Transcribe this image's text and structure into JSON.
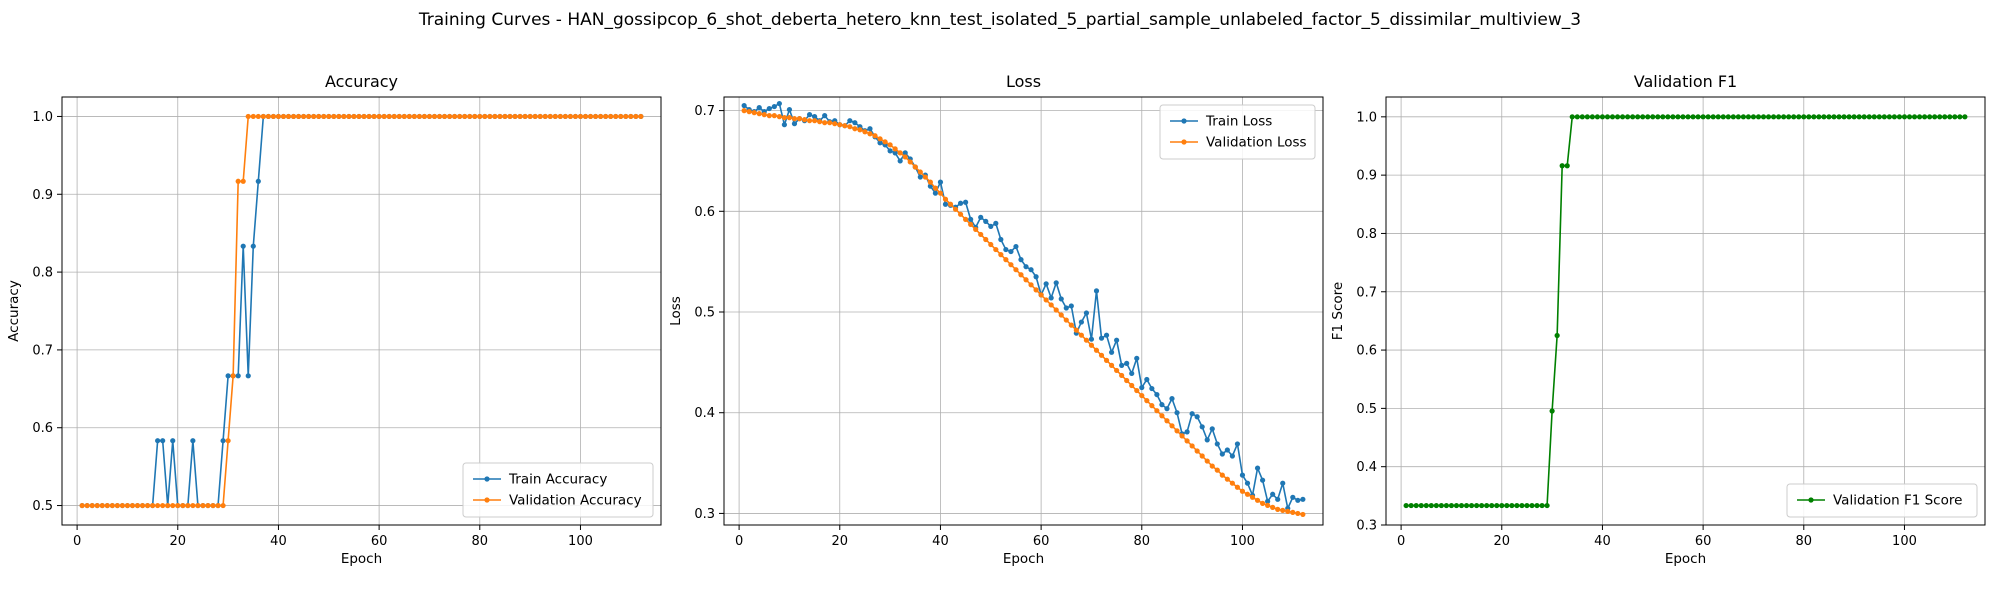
{
  "figure": {
    "suptitle": "Training Curves - HAN_gossipcop_6_shot_deberta_hetero_knn_test_isolated_5_partial_sample_unlabeled_factor_5_dissimilar_multiview_3"
  },
  "colors": {
    "blue": "#1f77b4",
    "orange": "#ff7f0e",
    "green": "#008000",
    "grid": "#b0b0b0"
  },
  "chart_data": [
    {
      "type": "line",
      "title": "Accuracy",
      "xlabel": "Epoch",
      "ylabel": "Accuracy",
      "xlim": [
        -3,
        116
      ],
      "ylim": [
        0.475,
        1.025
      ],
      "xticks": [
        0,
        20,
        40,
        60,
        80,
        100
      ],
      "yticks": [
        0.5,
        0.6,
        0.7,
        0.8,
        0.9,
        1.0
      ],
      "ytick_labels": [
        "0.5",
        "0.6",
        "0.7",
        "0.8",
        "0.9",
        "1.0"
      ],
      "grid": true,
      "legend": "lower-right",
      "series": [
        {
          "name": "Train Accuracy",
          "color": "#1f77b4",
          "runs": [
            [
              1,
              15,
              0.5
            ],
            [
              16,
              16,
              0.5833
            ],
            [
              17,
              17,
              0.5833
            ],
            [
              18,
              18,
              0.5
            ],
            [
              19,
              19,
              0.5833
            ],
            [
              20,
              22,
              0.5
            ],
            [
              23,
              23,
              0.5833
            ],
            [
              24,
              28,
              0.5
            ],
            [
              29,
              29,
              0.5833
            ],
            [
              30,
              30,
              0.6667
            ],
            [
              31,
              31,
              0.6667
            ],
            [
              32,
              32,
              0.6667
            ],
            [
              33,
              33,
              0.8333
            ],
            [
              34,
              34,
              0.6667
            ],
            [
              35,
              35,
              0.8333
            ],
            [
              36,
              36,
              0.9167
            ],
            [
              37,
              112,
              1.0
            ]
          ]
        },
        {
          "name": "Validation Accuracy",
          "color": "#ff7f0e",
          "runs": [
            [
              1,
              29,
              0.5
            ],
            [
              30,
              30,
              0.5833
            ],
            [
              31,
              31,
              0.6667
            ],
            [
              32,
              33,
              0.9167
            ],
            [
              34,
              112,
              1.0
            ]
          ]
        }
      ]
    },
    {
      "type": "line",
      "title": "Loss",
      "xlabel": "Epoch",
      "ylabel": "Loss",
      "xlim": [
        -3,
        116
      ],
      "ylim": [
        0.2885,
        0.7135
      ],
      "xticks": [
        0,
        20,
        40,
        60,
        80,
        100
      ],
      "yticks": [
        0.3,
        0.4,
        0.5,
        0.6,
        0.7
      ],
      "ytick_labels": [
        "0.3",
        "0.4",
        "0.5",
        "0.6",
        "0.7"
      ],
      "grid": true,
      "legend": "upper-right",
      "series": [
        {
          "name": "Train Loss",
          "color": "#1f77b4",
          "x": [
            1,
            2,
            3,
            4,
            5,
            6,
            7,
            8,
            9,
            10,
            11,
            12,
            13,
            14,
            15,
            16,
            17,
            18,
            19,
            20,
            21,
            22,
            23,
            24,
            25,
            26,
            27,
            28,
            29,
            30,
            31,
            32,
            33,
            34,
            35,
            36,
            37,
            38,
            39,
            40,
            41,
            42,
            43,
            44,
            45,
            46,
            47,
            48,
            49,
            50,
            51,
            52,
            53,
            54,
            55,
            56,
            57,
            58,
            59,
            60,
            61,
            62,
            63,
            64,
            65,
            66,
            67,
            68,
            69,
            70,
            71,
            72,
            73,
            74,
            75,
            76,
            77,
            78,
            79,
            80,
            81,
            82,
            83,
            84,
            85,
            86,
            87,
            88,
            89,
            90,
            91,
            92,
            93,
            94,
            95,
            96,
            97,
            98,
            99,
            100,
            101,
            102,
            103,
            104,
            105,
            106,
            107,
            108,
            109,
            110,
            111,
            112
          ],
          "y": [
            0.705,
            0.701,
            0.699,
            0.703,
            0.699,
            0.702,
            0.704,
            0.707,
            0.686,
            0.701,
            0.687,
            0.692,
            0.69,
            0.696,
            0.694,
            0.69,
            0.695,
            0.689,
            0.69,
            0.686,
            0.685,
            0.69,
            0.688,
            0.684,
            0.68,
            0.682,
            0.674,
            0.668,
            0.666,
            0.66,
            0.658,
            0.65,
            0.658,
            0.652,
            0.644,
            0.634,
            0.636,
            0.625,
            0.618,
            0.629,
            0.607,
            0.606,
            0.604,
            0.608,
            0.609,
            0.592,
            0.584,
            0.594,
            0.59,
            0.585,
            0.588,
            0.572,
            0.562,
            0.56,
            0.565,
            0.552,
            0.545,
            0.542,
            0.535,
            0.517,
            0.528,
            0.514,
            0.529,
            0.513,
            0.504,
            0.506,
            0.479,
            0.49,
            0.499,
            0.473,
            0.521,
            0.474,
            0.477,
            0.46,
            0.472,
            0.447,
            0.449,
            0.439,
            0.454,
            0.425,
            0.433,
            0.424,
            0.418,
            0.408,
            0.404,
            0.414,
            0.4,
            0.379,
            0.381,
            0.399,
            0.396,
            0.386,
            0.373,
            0.384,
            0.369,
            0.359,
            0.363,
            0.357,
            0.369,
            0.338,
            0.33,
            0.318,
            0.345,
            0.333,
            0.312,
            0.319,
            0.314,
            0.33,
            0.305,
            0.316,
            0.313,
            0.314
          ]
        },
        {
          "name": "Validation Loss",
          "color": "#ff7f0e",
          "x": [
            1,
            2,
            3,
            4,
            5,
            6,
            7,
            8,
            9,
            10,
            11,
            12,
            13,
            14,
            15,
            16,
            17,
            18,
            19,
            20,
            21,
            22,
            23,
            24,
            25,
            26,
            27,
            28,
            29,
            30,
            31,
            32,
            33,
            34,
            35,
            36,
            37,
            38,
            39,
            40,
            41,
            42,
            43,
            44,
            45,
            46,
            47,
            48,
            49,
            50,
            51,
            52,
            53,
            54,
            55,
            56,
            57,
            58,
            59,
            60,
            61,
            62,
            63,
            64,
            65,
            66,
            67,
            68,
            69,
            70,
            71,
            72,
            73,
            74,
            75,
            76,
            77,
            78,
            79,
            80,
            81,
            82,
            83,
            84,
            85,
            86,
            87,
            88,
            89,
            90,
            91,
            92,
            93,
            94,
            95,
            96,
            97,
            98,
            99,
            100,
            101,
            102,
            103,
            104,
            105,
            106,
            107,
            108,
            109,
            110,
            111,
            112
          ],
          "y": [
            0.7,
            0.699,
            0.698,
            0.697,
            0.696,
            0.695,
            0.695,
            0.694,
            0.693,
            0.693,
            0.692,
            0.692,
            0.691,
            0.69,
            0.69,
            0.689,
            0.688,
            0.688,
            0.687,
            0.686,
            0.685,
            0.684,
            0.682,
            0.681,
            0.679,
            0.677,
            0.675,
            0.672,
            0.669,
            0.666,
            0.662,
            0.658,
            0.654,
            0.649,
            0.644,
            0.639,
            0.634,
            0.629,
            0.623,
            0.618,
            0.612,
            0.607,
            0.602,
            0.597,
            0.592,
            0.587,
            0.582,
            0.577,
            0.572,
            0.567,
            0.562,
            0.557,
            0.552,
            0.547,
            0.542,
            0.537,
            0.532,
            0.527,
            0.522,
            0.517,
            0.512,
            0.507,
            0.502,
            0.497,
            0.492,
            0.487,
            0.482,
            0.477,
            0.472,
            0.467,
            0.462,
            0.457,
            0.452,
            0.447,
            0.442,
            0.437,
            0.432,
            0.427,
            0.422,
            0.417,
            0.412,
            0.407,
            0.402,
            0.397,
            0.392,
            0.387,
            0.382,
            0.377,
            0.372,
            0.367,
            0.362,
            0.357,
            0.352,
            0.347,
            0.343,
            0.338,
            0.334,
            0.33,
            0.326,
            0.322,
            0.319,
            0.316,
            0.313,
            0.31,
            0.308,
            0.306,
            0.304,
            0.303,
            0.302,
            0.301,
            0.3,
            0.299
          ]
        }
      ]
    },
    {
      "type": "line",
      "title": "Validation F1",
      "xlabel": "Epoch",
      "ylabel": "F1 Score",
      "xlim": [
        -3,
        116
      ],
      "ylim": [
        0.3,
        1.034
      ],
      "xticks": [
        0,
        20,
        40,
        60,
        80,
        100
      ],
      "yticks": [
        0.3,
        0.4,
        0.5,
        0.6,
        0.7,
        0.8,
        0.9,
        1.0
      ],
      "ytick_labels": [
        "0.3",
        "0.4",
        "0.5",
        "0.6",
        "0.7",
        "0.8",
        "0.9",
        "1.0"
      ],
      "grid": true,
      "legend": "lower-right",
      "series": [
        {
          "name": "Validation F1 Score",
          "color": "#008000",
          "runs": [
            [
              1,
              29,
              0.3333
            ],
            [
              30,
              30,
              0.4955
            ],
            [
              31,
              31,
              0.625
            ],
            [
              32,
              33,
              0.9161
            ],
            [
              34,
              112,
              1.0
            ]
          ]
        }
      ]
    }
  ]
}
